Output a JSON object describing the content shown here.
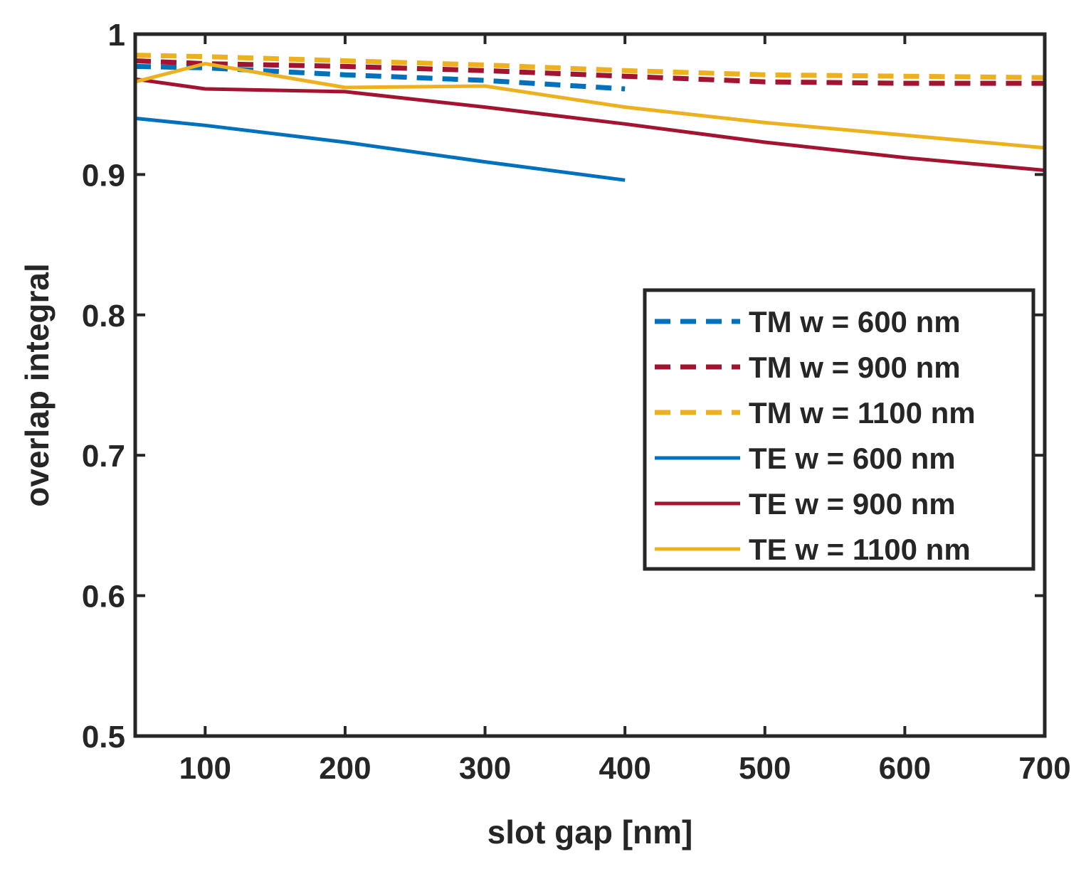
{
  "chart_data": {
    "type": "line",
    "title": "",
    "xlabel": "slot gap [nm]",
    "ylabel": "overlap integral",
    "xlim": [
      50,
      700
    ],
    "ylim": [
      0.5,
      1.0
    ],
    "xticks": [
      100,
      200,
      300,
      400,
      500,
      600,
      700
    ],
    "xtick_labels": [
      "100",
      "200",
      "300",
      "400",
      "500",
      "600",
      "700"
    ],
    "yticks": [
      0.5,
      0.6,
      0.7,
      0.8,
      0.9,
      1.0
    ],
    "ytick_labels": [
      "0.5",
      "0.6",
      "0.7",
      "0.8",
      "0.9",
      "1"
    ],
    "grid": false,
    "legend_position": "center-right",
    "series": [
      {
        "name": "TM w = 600 nm",
        "color": "#0072BD",
        "dash": "dashed",
        "x": [
          50,
          100,
          200,
          300,
          400
        ],
        "y": [
          0.977,
          0.976,
          0.971,
          0.967,
          0.961
        ]
      },
      {
        "name": "TM w = 900 nm",
        "color": "#A2142F",
        "dash": "dashed",
        "x": [
          50,
          100,
          200,
          300,
          400,
          500,
          600,
          700
        ],
        "y": [
          0.981,
          0.979,
          0.977,
          0.974,
          0.97,
          0.966,
          0.965,
          0.965
        ]
      },
      {
        "name": "TM w = 1100 nm",
        "color": "#EDB120",
        "dash": "dashed",
        "x": [
          50,
          100,
          200,
          300,
          400,
          500,
          600,
          700
        ],
        "y": [
          0.985,
          0.984,
          0.981,
          0.978,
          0.974,
          0.971,
          0.97,
          0.969
        ]
      },
      {
        "name": "TE w = 600 nm",
        "color": "#0072BD",
        "dash": "solid",
        "x": [
          50,
          100,
          200,
          300,
          400
        ],
        "y": [
          0.94,
          0.935,
          0.923,
          0.909,
          0.896
        ]
      },
      {
        "name": "TE w = 900 nm",
        "color": "#A2142F",
        "dash": "solid",
        "x": [
          50,
          100,
          200,
          300,
          400,
          500,
          600,
          700
        ],
        "y": [
          0.968,
          0.961,
          0.959,
          0.948,
          0.936,
          0.923,
          0.912,
          0.903
        ]
      },
      {
        "name": "TE w = 1100 nm",
        "color": "#EDB120",
        "dash": "solid",
        "x": [
          50,
          100,
          200,
          300,
          400,
          500,
          600,
          700
        ],
        "y": [
          0.966,
          0.979,
          0.962,
          0.963,
          0.948,
          0.937,
          0.928,
          0.919
        ]
      }
    ]
  }
}
